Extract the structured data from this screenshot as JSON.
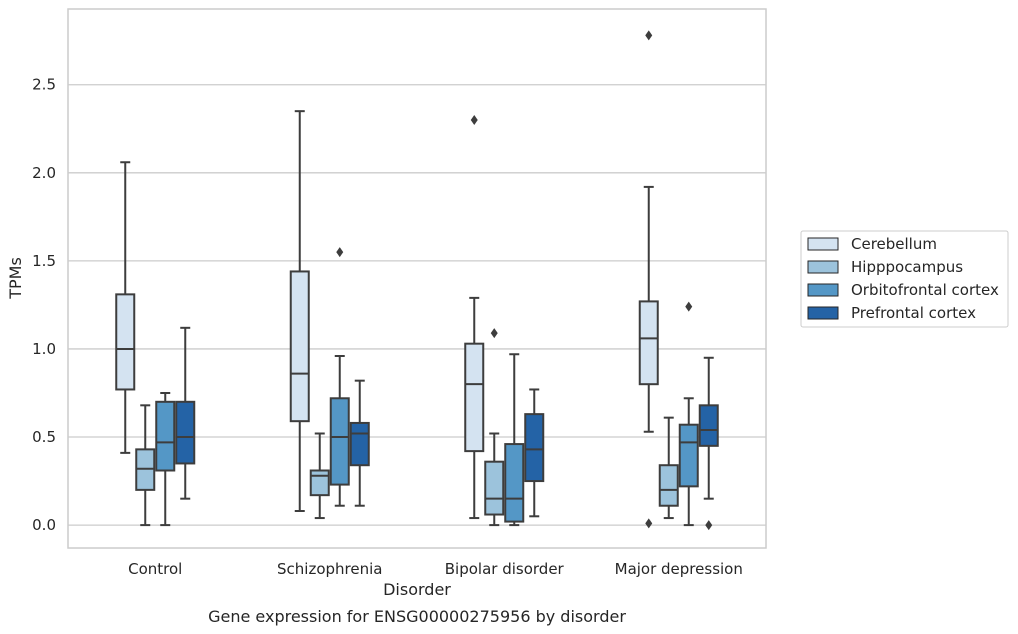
{
  "chart_data": {
    "type": "box",
    "caption": "Gene expression for ENSG00000275956 by disorder",
    "xlabel": "Disorder",
    "ylabel": "TPMs",
    "ylim": [
      -0.13,
      2.93
    ],
    "yticks": [
      0.0,
      0.5,
      1.0,
      1.5,
      2.0,
      2.5
    ],
    "ytick_labels": [
      "0.0",
      "0.5",
      "1.0",
      "1.5",
      "2.0",
      "2.5"
    ],
    "grid": "horizontal",
    "legend_position": "right",
    "categories": [
      "Control",
      "Schizophrenia",
      "Bipolar disorder",
      "Major depression"
    ],
    "series": [
      {
        "name": "Cerebellum",
        "color": "#d4e3f1",
        "boxes": [
          {
            "whisker_low": 0.41,
            "q1": 0.77,
            "median": 1.0,
            "q3": 1.31,
            "whisker_high": 2.06,
            "outliers": []
          },
          {
            "whisker_low": 0.08,
            "q1": 0.59,
            "median": 0.86,
            "q3": 1.44,
            "whisker_high": 2.35,
            "outliers": []
          },
          {
            "whisker_low": 0.04,
            "q1": 0.42,
            "median": 0.8,
            "q3": 1.03,
            "whisker_high": 1.29,
            "outliers": [
              2.3
            ]
          },
          {
            "whisker_low": 0.53,
            "q1": 0.8,
            "median": 1.06,
            "q3": 1.27,
            "whisker_high": 1.92,
            "outliers": [
              0.01,
              2.78
            ]
          }
        ]
      },
      {
        "name": "Hipppocampus",
        "color": "#9cc3dc",
        "boxes": [
          {
            "whisker_low": 0.0,
            "q1": 0.2,
            "median": 0.32,
            "q3": 0.43,
            "whisker_high": 0.68,
            "outliers": []
          },
          {
            "whisker_low": 0.04,
            "q1": 0.17,
            "median": 0.28,
            "q3": 0.31,
            "whisker_high": 0.52,
            "outliers": []
          },
          {
            "whisker_low": 0.0,
            "q1": 0.06,
            "median": 0.15,
            "q3": 0.36,
            "whisker_high": 0.52,
            "outliers": [
              1.09
            ]
          },
          {
            "whisker_low": 0.04,
            "q1": 0.11,
            "median": 0.2,
            "q3": 0.34,
            "whisker_high": 0.61,
            "outliers": []
          }
        ]
      },
      {
        "name": "Orbitofrontal cortex",
        "color": "#5497c6",
        "boxes": [
          {
            "whisker_low": 0.0,
            "q1": 0.31,
            "median": 0.47,
            "q3": 0.7,
            "whisker_high": 0.75,
            "outliers": []
          },
          {
            "whisker_low": 0.11,
            "q1": 0.23,
            "median": 0.5,
            "q3": 0.72,
            "whisker_high": 0.96,
            "outliers": [
              1.55
            ]
          },
          {
            "whisker_low": 0.0,
            "q1": 0.02,
            "median": 0.15,
            "q3": 0.46,
            "whisker_high": 0.97,
            "outliers": []
          },
          {
            "whisker_low": 0.0,
            "q1": 0.22,
            "median": 0.47,
            "q3": 0.57,
            "whisker_high": 0.72,
            "outliers": [
              1.24
            ]
          }
        ]
      },
      {
        "name": "Prefrontal cortex",
        "color": "#2463a6",
        "boxes": [
          {
            "whisker_low": 0.15,
            "q1": 0.35,
            "median": 0.5,
            "q3": 0.7,
            "whisker_high": 1.12,
            "outliers": []
          },
          {
            "whisker_low": 0.11,
            "q1": 0.34,
            "median": 0.52,
            "q3": 0.58,
            "whisker_high": 0.82,
            "outliers": []
          },
          {
            "whisker_low": 0.05,
            "q1": 0.25,
            "median": 0.43,
            "q3": 0.63,
            "whisker_high": 0.77,
            "outliers": []
          },
          {
            "whisker_low": 0.15,
            "q1": 0.45,
            "median": 0.54,
            "q3": 0.68,
            "whisker_high": 0.95,
            "outliers": [
              0.0
            ]
          }
        ]
      }
    ]
  }
}
